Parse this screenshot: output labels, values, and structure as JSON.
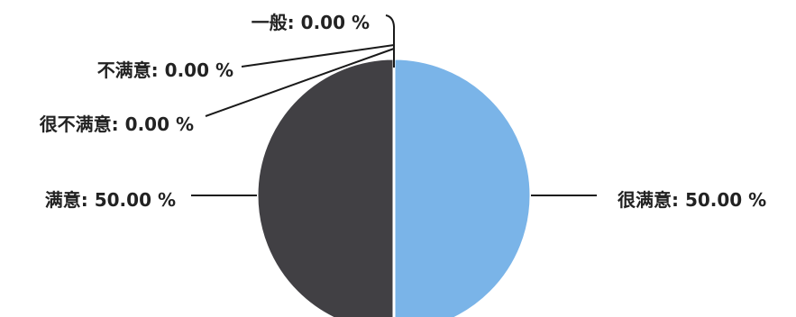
{
  "chart_data": {
    "type": "pie",
    "slices": [
      {
        "label": "很满意",
        "value": 50.0,
        "text": "很满意: 50.00 %",
        "color": "#7ab4e8"
      },
      {
        "label": "满意",
        "value": 50.0,
        "text": "满意: 50.00 %",
        "color": "#414044"
      },
      {
        "label": "很不满意",
        "value": 0.0,
        "text": "很不满意: 0.00 %",
        "color": "#7ab4e8"
      },
      {
        "label": "不满意",
        "value": 0.0,
        "text": "不满意: 0.00 %",
        "color": "#414044"
      },
      {
        "label": "一般",
        "value": 0.0,
        "text": "一般: 0.00 %",
        "color": "#7ab4e8"
      }
    ]
  }
}
